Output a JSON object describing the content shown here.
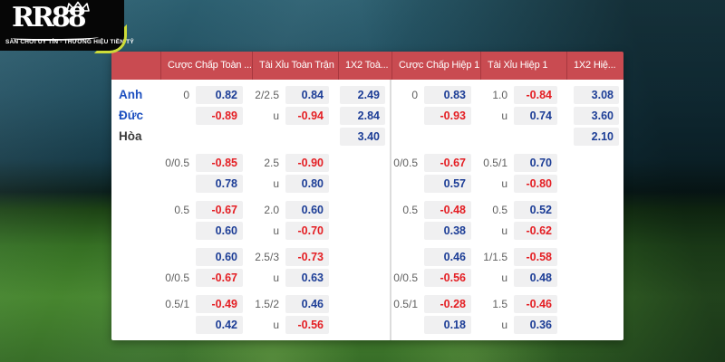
{
  "logo": {
    "brand": "RR88",
    "tagline": "SÀN CHƠI UY TÍN - THƯƠNG HIỆU TIỀN TỶ"
  },
  "colors": {
    "header_bg": "#c94b51",
    "header_divider": "#a8383f",
    "body_divider": "#dcdcdc",
    "box_bg": "#f0f0f1",
    "odds_blue": "#1c3d96",
    "odds_red": "#e41e23",
    "label": "#5f5f5f",
    "team_blue": "#1d50c0",
    "team_dark": "#3a3a3a",
    "accent_lime": "#cddc39"
  },
  "odds_table": {
    "headers": [
      "",
      "Cược Chấp Toàn ...",
      "Tài Xỉu Toàn Trận",
      "1X2 Toà...",
      "Cược Chấp Hiệp 1",
      "Tài Xỉu Hiệp 1",
      "1X2 Hiệ..."
    ],
    "blocks": [
      {
        "rows": [
          {
            "team": {
              "label": "Anh",
              "color": "blue"
            },
            "cells": [
              {
                "l": "0",
                "v": "0.82",
                "c": "b"
              },
              {
                "l": "2/2.5",
                "v": "0.84",
                "c": "b"
              },
              {
                "l": "",
                "v": "2.49",
                "c": "b"
              },
              {
                "l": "0",
                "v": "0.83",
                "c": "b"
              },
              {
                "l": "1.0",
                "v": "-0.84",
                "c": "r"
              },
              {
                "l": "",
                "v": "3.08",
                "c": "b"
              }
            ]
          },
          {
            "team": {
              "label": "Đức",
              "color": "blue"
            },
            "cells": [
              {
                "l": "",
                "v": "-0.89",
                "c": "r"
              },
              {
                "l": "u",
                "v": "-0.94",
                "c": "r"
              },
              {
                "l": "",
                "v": "2.84",
                "c": "b"
              },
              {
                "l": "",
                "v": "-0.93",
                "c": "r"
              },
              {
                "l": "u",
                "v": "0.74",
                "c": "b"
              },
              {
                "l": "",
                "v": "3.60",
                "c": "b"
              }
            ]
          },
          {
            "team": {
              "label": "Hòa",
              "color": "dark"
            },
            "cells": [
              null,
              null,
              {
                "l": "",
                "v": "3.40",
                "c": "b"
              },
              null,
              null,
              {
                "l": "",
                "v": "2.10",
                "c": "b"
              }
            ]
          }
        ]
      },
      {
        "rows": [
          {
            "team": null,
            "cells": [
              {
                "l": "0/0.5",
                "v": "-0.85",
                "c": "r"
              },
              {
                "l": "2.5",
                "v": "-0.90",
                "c": "r"
              },
              null,
              {
                "l": "0/0.5",
                "v": "-0.67",
                "c": "r"
              },
              {
                "l": "0.5/1",
                "v": "0.70",
                "c": "b"
              },
              null
            ]
          },
          {
            "team": null,
            "cells": [
              {
                "l": "",
                "v": "0.78",
                "c": "b"
              },
              {
                "l": "u",
                "v": "0.80",
                "c": "b"
              },
              null,
              {
                "l": "",
                "v": "0.57",
                "c": "b"
              },
              {
                "l": "u",
                "v": "-0.80",
                "c": "r"
              },
              null
            ]
          }
        ]
      },
      {
        "rows": [
          {
            "team": null,
            "cells": [
              {
                "l": "0.5",
                "v": "-0.67",
                "c": "r"
              },
              {
                "l": "2.0",
                "v": "0.60",
                "c": "b"
              },
              null,
              {
                "l": "0.5",
                "v": "-0.48",
                "c": "r"
              },
              {
                "l": "0.5",
                "v": "0.52",
                "c": "b"
              },
              null
            ]
          },
          {
            "team": null,
            "cells": [
              {
                "l": "",
                "v": "0.60",
                "c": "b"
              },
              {
                "l": "u",
                "v": "-0.70",
                "c": "r"
              },
              null,
              {
                "l": "",
                "v": "0.38",
                "c": "b"
              },
              {
                "l": "u",
                "v": "-0.62",
                "c": "r"
              },
              null
            ]
          }
        ]
      },
      {
        "rows": [
          {
            "team": null,
            "cells": [
              {
                "l": "",
                "v": "0.60",
                "c": "b"
              },
              {
                "l": "2.5/3",
                "v": "-0.73",
                "c": "r"
              },
              null,
              {
                "l": "",
                "v": "0.46",
                "c": "b"
              },
              {
                "l": "1/1.5",
                "v": "-0.58",
                "c": "r"
              },
              null
            ]
          },
          {
            "team": null,
            "cells": [
              {
                "l": "0/0.5",
                "v": "-0.67",
                "c": "r"
              },
              {
                "l": "u",
                "v": "0.63",
                "c": "b"
              },
              null,
              {
                "l": "0/0.5",
                "v": "-0.56",
                "c": "r"
              },
              {
                "l": "u",
                "v": "0.48",
                "c": "b"
              },
              null
            ]
          }
        ]
      },
      {
        "rows": [
          {
            "team": null,
            "cells": [
              {
                "l": "0.5/1",
                "v": "-0.49",
                "c": "r"
              },
              {
                "l": "1.5/2",
                "v": "0.46",
                "c": "b"
              },
              null,
              {
                "l": "0.5/1",
                "v": "-0.28",
                "c": "r"
              },
              {
                "l": "1.5",
                "v": "-0.46",
                "c": "r"
              },
              null
            ]
          },
          {
            "team": null,
            "cells": [
              {
                "l": "",
                "v": "0.42",
                "c": "b"
              },
              {
                "l": "u",
                "v": "-0.56",
                "c": "r"
              },
              null,
              {
                "l": "",
                "v": "0.18",
                "c": "b"
              },
              {
                "l": "u",
                "v": "0.36",
                "c": "b"
              },
              null
            ]
          }
        ]
      }
    ]
  }
}
